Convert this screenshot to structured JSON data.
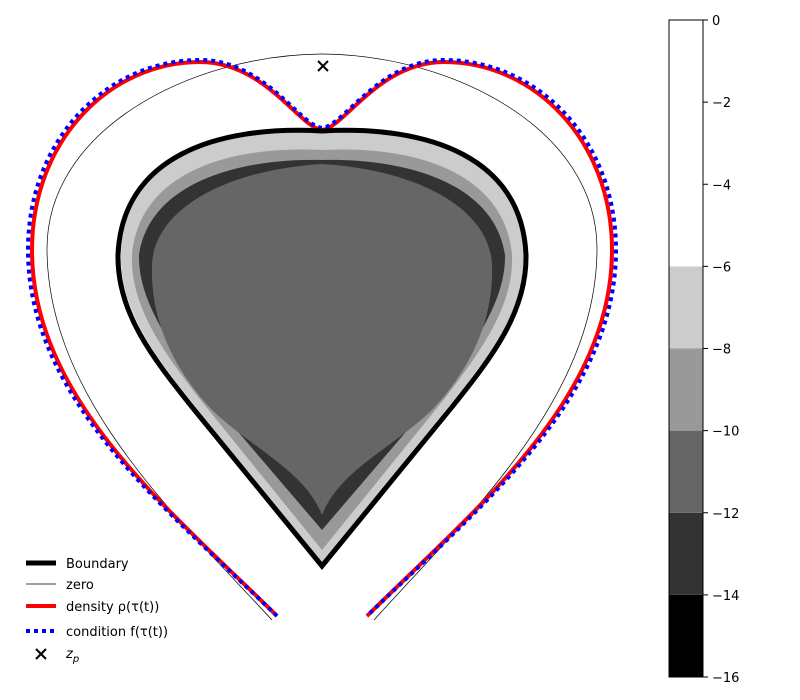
{
  "chart_data": {
    "type": "contour",
    "title": "",
    "xlabel": "",
    "ylabel": "",
    "colorbar": {
      "range": [
        -16,
        0
      ],
      "ticks": [
        "0",
        "−2",
        "−4",
        "−6",
        "−8",
        "−10",
        "−12",
        "−14",
        "−16"
      ],
      "levels": [
        {
          "from": -16,
          "to": -14,
          "color": "#000000"
        },
        {
          "from": -14,
          "to": -12,
          "color": "#333333"
        },
        {
          "from": -12,
          "to": -10,
          "color": "#666666"
        },
        {
          "from": -10,
          "to": -8,
          "color": "#999999"
        },
        {
          "from": -8,
          "to": -6,
          "color": "#cccccc"
        },
        {
          "from": -6,
          "to": 0,
          "color": "#ffffff"
        }
      ]
    },
    "legend": {
      "placement": "lower-left",
      "entries": [
        {
          "label": "Boundary",
          "style": "thick-solid",
          "color": "#000000"
        },
        {
          "label": "zero",
          "style": "thin-solid",
          "color": "#000000"
        },
        {
          "label": "density ρ(τ(t))",
          "style": "solid",
          "color": "#ff0000"
        },
        {
          "label": "condition f(τ(t))",
          "style": "dotted",
          "color": "#0000ff"
        },
        {
          "label": "z",
          "sub": "p",
          "style": "x-marker",
          "color": "#000000"
        }
      ]
    },
    "marker_label": "z_p"
  }
}
